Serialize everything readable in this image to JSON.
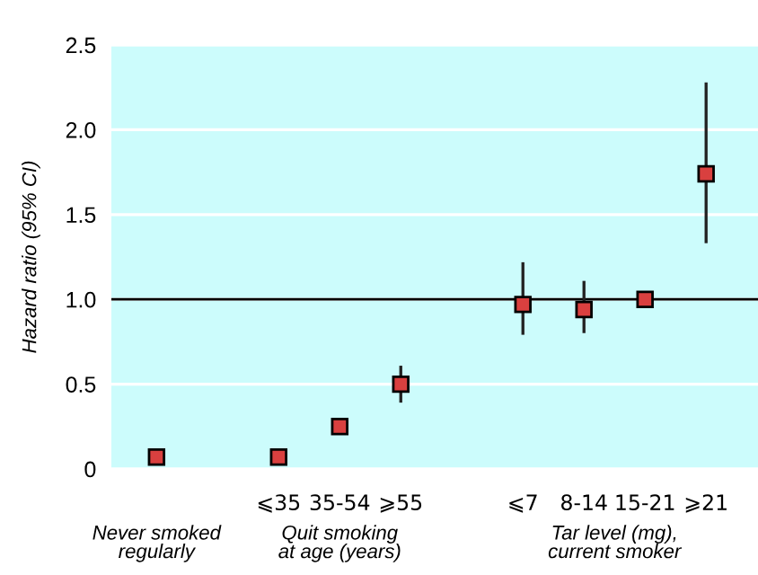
{
  "chart_data": {
    "type": "scatter",
    "ylabel": "Hazard ratio (95% CI)",
    "categories": [
      null,
      null,
      "⩽35",
      "35-54",
      "⩾55",
      null,
      "⩽7",
      "8-14",
      "15-21",
      "⩾21"
    ],
    "values": [
      0.07,
      null,
      0.07,
      0.25,
      0.5,
      null,
      0.97,
      0.94,
      1.0,
      1.74
    ],
    "errors": [
      null,
      null,
      null,
      [
        0.21,
        0.29
      ],
      [
        0.4,
        0.6
      ],
      null,
      [
        0.8,
        1.21
      ],
      [
        0.81,
        1.1
      ],
      null,
      [
        1.34,
        2.27
      ]
    ],
    "color": "#d9403f",
    "marker": "square",
    "ylim": [
      0,
      2.5
    ],
    "yticks": [
      0,
      {
        "value": 0.5,
        "label": "0.5"
      },
      {
        "value": 1,
        "label": "1.0"
      },
      {
        "value": 1.5,
        "label": "1.5"
      },
      {
        "value": 2,
        "label": "2.0"
      },
      {
        "value": 2.5,
        "label": "2.5"
      }
    ],
    "grid": "y",
    "ref_lines": [
      {
        "axis": "y",
        "value": 1,
        "color": "#000000"
      }
    ],
    "annotations": [
      "Never smoked\nregularly",
      "Quit smoking\nat age (years)",
      "Tar level (mg),\ncurrent smoker"
    ]
  }
}
